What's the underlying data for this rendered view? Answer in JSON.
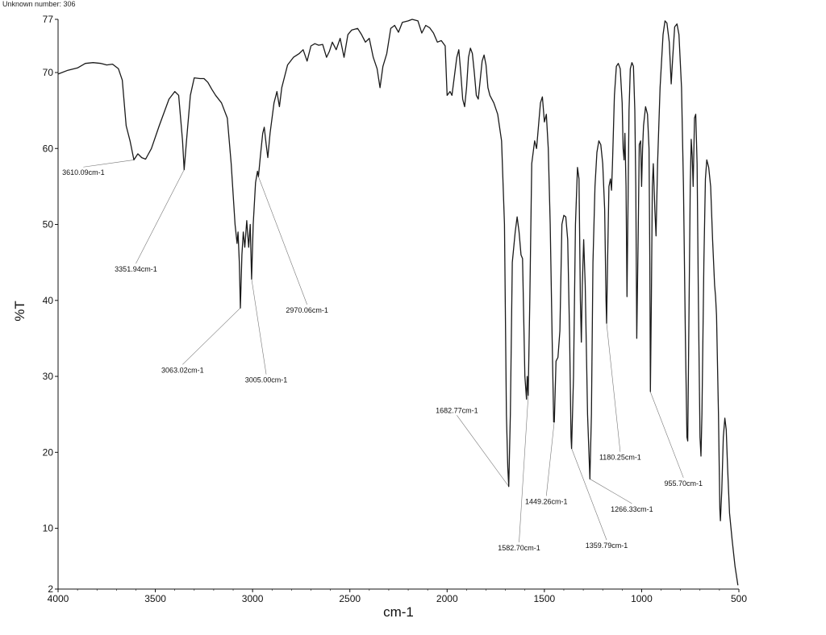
{
  "header": {
    "unknown_label": "Unknown number: 306"
  },
  "chart_data": {
    "type": "line",
    "title": "",
    "xlabel": "cm-1",
    "ylabel": "%T",
    "xlim": [
      4000,
      500
    ],
    "ylim": [
      2,
      77
    ],
    "x_reversed": true,
    "grid": false,
    "x_ticks": [
      4000,
      3500,
      3000,
      2500,
      2000,
      1500,
      1000,
      500
    ],
    "y_ticks": [
      2,
      10,
      20,
      30,
      40,
      50,
      60,
      70,
      77
    ],
    "series": [
      {
        "line_color": "#1a1a1a",
        "points": [
          [
            4000,
            69.8
          ],
          [
            3950,
            70.3
          ],
          [
            3900,
            70.6
          ],
          [
            3860,
            71.2
          ],
          [
            3820,
            71.3
          ],
          [
            3780,
            71.2
          ],
          [
            3750,
            71.0
          ],
          [
            3720,
            71.1
          ],
          [
            3690,
            70.5
          ],
          [
            3670,
            69.0
          ],
          [
            3650,
            63.0
          ],
          [
            3630,
            61.0
          ],
          [
            3610,
            58.5
          ],
          [
            3590,
            59.3
          ],
          [
            3570,
            58.8
          ],
          [
            3550,
            58.6
          ],
          [
            3520,
            60.0
          ],
          [
            3480,
            63.0
          ],
          [
            3430,
            66.5
          ],
          [
            3400,
            67.5
          ],
          [
            3380,
            67.0
          ],
          [
            3360,
            61.0
          ],
          [
            3352,
            57.2
          ],
          [
            3340,
            61.0
          ],
          [
            3320,
            67.0
          ],
          [
            3300,
            69.3
          ],
          [
            3270,
            69.2
          ],
          [
            3250,
            69.2
          ],
          [
            3230,
            68.7
          ],
          [
            3210,
            67.8
          ],
          [
            3190,
            67.0
          ],
          [
            3160,
            66.0
          ],
          [
            3130,
            64.0
          ],
          [
            3110,
            58.0
          ],
          [
            3090,
            50.0
          ],
          [
            3080,
            47.5
          ],
          [
            3075,
            49.0
          ],
          [
            3068,
            45.0
          ],
          [
            3063,
            39.0
          ],
          [
            3055,
            46.0
          ],
          [
            3048,
            49.0
          ],
          [
            3040,
            47.0
          ],
          [
            3030,
            50.5
          ],
          [
            3020,
            47.0
          ],
          [
            3012,
            50.0
          ],
          [
            3005,
            42.8
          ],
          [
            2997,
            50.0
          ],
          [
            2985,
            55.5
          ],
          [
            2975,
            57.0
          ],
          [
            2970,
            56.3
          ],
          [
            2960,
            59.0
          ],
          [
            2948,
            62.0
          ],
          [
            2940,
            62.8
          ],
          [
            2930,
            60.5
          ],
          [
            2922,
            58.8
          ],
          [
            2910,
            62.0
          ],
          [
            2890,
            66.0
          ],
          [
            2875,
            67.5
          ],
          [
            2862,
            65.5
          ],
          [
            2850,
            68.0
          ],
          [
            2820,
            71.0
          ],
          [
            2790,
            72.0
          ],
          [
            2760,
            72.5
          ],
          [
            2740,
            73.0
          ],
          [
            2720,
            71.5
          ],
          [
            2700,
            73.5
          ],
          [
            2680,
            73.8
          ],
          [
            2660,
            73.6
          ],
          [
            2640,
            73.7
          ],
          [
            2620,
            72.0
          ],
          [
            2605,
            72.8
          ],
          [
            2590,
            74.0
          ],
          [
            2570,
            73.0
          ],
          [
            2550,
            74.5
          ],
          [
            2530,
            72.0
          ],
          [
            2510,
            75.0
          ],
          [
            2490,
            75.6
          ],
          [
            2460,
            75.8
          ],
          [
            2440,
            75.0
          ],
          [
            2420,
            74.0
          ],
          [
            2400,
            74.5
          ],
          [
            2380,
            72.0
          ],
          [
            2360,
            70.5
          ],
          [
            2345,
            68.0
          ],
          [
            2330,
            70.8
          ],
          [
            2310,
            72.5
          ],
          [
            2290,
            75.8
          ],
          [
            2270,
            76.2
          ],
          [
            2250,
            75.3
          ],
          [
            2230,
            76.6
          ],
          [
            2200,
            76.8
          ],
          [
            2180,
            77.0
          ],
          [
            2150,
            76.8
          ],
          [
            2130,
            75.2
          ],
          [
            2110,
            76.2
          ],
          [
            2090,
            75.9
          ],
          [
            2070,
            75.2
          ],
          [
            2050,
            74.0
          ],
          [
            2030,
            74.2
          ],
          [
            2010,
            73.5
          ],
          [
            2000,
            67.0
          ],
          [
            1985,
            67.5
          ],
          [
            1975,
            67.0
          ],
          [
            1960,
            70.0
          ],
          [
            1950,
            72.0
          ],
          [
            1940,
            73.0
          ],
          [
            1930,
            70.0
          ],
          [
            1920,
            66.5
          ],
          [
            1910,
            65.5
          ],
          [
            1900,
            68.0
          ],
          [
            1890,
            72.0
          ],
          [
            1880,
            73.2
          ],
          [
            1870,
            72.5
          ],
          [
            1860,
            70.0
          ],
          [
            1850,
            67.0
          ],
          [
            1840,
            66.5
          ],
          [
            1830,
            69.0
          ],
          [
            1820,
            71.5
          ],
          [
            1810,
            72.3
          ],
          [
            1800,
            71.0
          ],
          [
            1790,
            68.0
          ],
          [
            1780,
            67.0
          ],
          [
            1760,
            66.0
          ],
          [
            1740,
            64.5
          ],
          [
            1720,
            61.0
          ],
          [
            1705,
            50.0
          ],
          [
            1695,
            25.0
          ],
          [
            1688,
            18.0
          ],
          [
            1683,
            15.5
          ],
          [
            1675,
            25.0
          ],
          [
            1665,
            45.0
          ],
          [
            1650,
            49.0
          ],
          [
            1640,
            51.0
          ],
          [
            1630,
            49.0
          ],
          [
            1620,
            46.0
          ],
          [
            1612,
            45.5
          ],
          [
            1600,
            30.0
          ],
          [
            1592,
            27.0
          ],
          [
            1588,
            30.0
          ],
          [
            1583,
            27.5
          ],
          [
            1575,
            40.0
          ],
          [
            1565,
            58.0
          ],
          [
            1550,
            61.0
          ],
          [
            1540,
            60.0
          ],
          [
            1530,
            63.0
          ],
          [
            1520,
            66.0
          ],
          [
            1510,
            66.8
          ],
          [
            1500,
            63.5
          ],
          [
            1490,
            64.5
          ],
          [
            1480,
            60.0
          ],
          [
            1470,
            50.0
          ],
          [
            1460,
            35.0
          ],
          [
            1452,
            24.0
          ],
          [
            1449,
            24.0
          ],
          [
            1440,
            32.0
          ],
          [
            1430,
            32.5
          ],
          [
            1420,
            36.0
          ],
          [
            1410,
            50.0
          ],
          [
            1400,
            51.2
          ],
          [
            1390,
            51.0
          ],
          [
            1380,
            48.0
          ],
          [
            1370,
            35.0
          ],
          [
            1363,
            22.0
          ],
          [
            1360,
            20.5
          ],
          [
            1350,
            30.0
          ],
          [
            1340,
            50.0
          ],
          [
            1330,
            57.5
          ],
          [
            1322,
            56.0
          ],
          [
            1315,
            40.0
          ],
          [
            1310,
            34.5
          ],
          [
            1305,
            42.0
          ],
          [
            1298,
            48.0
          ],
          [
            1290,
            42.0
          ],
          [
            1278,
            25.0
          ],
          [
            1266,
            16.5
          ],
          [
            1258,
            25.0
          ],
          [
            1250,
            45.0
          ],
          [
            1240,
            55.0
          ],
          [
            1230,
            59.5
          ],
          [
            1220,
            61.0
          ],
          [
            1210,
            60.5
          ],
          [
            1200,
            58.0
          ],
          [
            1190,
            52.0
          ],
          [
            1183,
            40.0
          ],
          [
            1180,
            37.0
          ],
          [
            1175,
            45.0
          ],
          [
            1168,
            55.0
          ],
          [
            1160,
            56.0
          ],
          [
            1155,
            54.5
          ],
          [
            1150,
            58.0
          ],
          [
            1140,
            67.0
          ],
          [
            1130,
            70.8
          ],
          [
            1120,
            71.2
          ],
          [
            1110,
            70.5
          ],
          [
            1100,
            66.0
          ],
          [
            1095,
            60.0
          ],
          [
            1090,
            58.5
          ],
          [
            1086,
            62.0
          ],
          [
            1080,
            55.0
          ],
          [
            1075,
            40.5
          ],
          [
            1070,
            52.0
          ],
          [
            1065,
            65.0
          ],
          [
            1058,
            70.5
          ],
          [
            1050,
            71.3
          ],
          [
            1042,
            70.8
          ],
          [
            1035,
            65.0
          ],
          [
            1030,
            55.0
          ],
          [
            1025,
            35.0
          ],
          [
            1018,
            48.0
          ],
          [
            1012,
            60.5
          ],
          [
            1005,
            61.0
          ],
          [
            1000,
            55.0
          ],
          [
            995,
            60.0
          ],
          [
            990,
            63.0
          ],
          [
            980,
            65.5
          ],
          [
            970,
            64.5
          ],
          [
            962,
            60.0
          ],
          [
            958,
            45.0
          ],
          [
            955,
            28.0
          ],
          [
            950,
            40.0
          ],
          [
            945,
            55.0
          ],
          [
            940,
            58.0
          ],
          [
            932,
            52.0
          ],
          [
            926,
            48.5
          ],
          [
            918,
            58.0
          ],
          [
            905,
            68.0
          ],
          [
            890,
            75.0
          ],
          [
            880,
            76.8
          ],
          [
            870,
            76.5
          ],
          [
            858,
            74.0
          ],
          [
            848,
            68.5
          ],
          [
            840,
            72.0
          ],
          [
            830,
            76.0
          ],
          [
            818,
            76.4
          ],
          [
            808,
            75.0
          ],
          [
            795,
            68.0
          ],
          [
            785,
            55.0
          ],
          [
            775,
            35.0
          ],
          [
            767,
            22.0
          ],
          [
            763,
            21.5
          ],
          [
            756,
            40.0
          ],
          [
            750,
            55.0
          ],
          [
            745,
            61.2
          ],
          [
            740,
            59.0
          ],
          [
            735,
            55.0
          ],
          [
            728,
            64.0
          ],
          [
            722,
            64.5
          ],
          [
            715,
            58.0
          ],
          [
            708,
            40.0
          ],
          [
            700,
            22.0
          ],
          [
            695,
            19.5
          ],
          [
            690,
            25.0
          ],
          [
            680,
            45.0
          ],
          [
            672,
            56.0
          ],
          [
            665,
            58.5
          ],
          [
            655,
            57.5
          ],
          [
            645,
            55.0
          ],
          [
            635,
            48.0
          ],
          [
            625,
            42.0
          ],
          [
            620,
            40.5
          ],
          [
            615,
            38.0
          ],
          [
            605,
            25.0
          ],
          [
            598,
            12.5
          ],
          [
            595,
            11.0
          ],
          [
            588,
            15.0
          ],
          [
            580,
            22.0
          ],
          [
            572,
            24.5
          ],
          [
            565,
            23.0
          ],
          [
            558,
            18.0
          ],
          [
            548,
            12.0
          ],
          [
            535,
            8.5
          ],
          [
            520,
            5.0
          ],
          [
            505,
            2.5
          ]
        ]
      }
    ],
    "annotations": [
      {
        "text": "3610.09cm-1",
        "x": 3610.09,
        "y": 58.5,
        "label_x": 3870,
        "label_y": 56.5
      },
      {
        "text": "3351.94cm-1",
        "x": 3351.94,
        "y": 57.2,
        "label_x": 3600,
        "label_y": 43.8
      },
      {
        "text": "2970.06cm-1",
        "x": 2970.06,
        "y": 56.3,
        "label_x": 2720,
        "label_y": 38.4
      },
      {
        "text": "3063.02cm-1",
        "x": 3063.02,
        "y": 39.0,
        "label_x": 3360,
        "label_y": 30.5
      },
      {
        "text": "3005.00cm-1",
        "x": 3005.0,
        "y": 42.8,
        "label_x": 2930,
        "label_y": 29.2
      },
      {
        "text": "1682.77cm-1",
        "x": 1682.77,
        "y": 15.5,
        "label_x": 1950,
        "label_y": 25.2
      },
      {
        "text": "1582.70cm-1",
        "x": 1582.7,
        "y": 27.5,
        "label_x": 1630,
        "label_y": 7.1
      },
      {
        "text": "1449.26cm-1",
        "x": 1449.26,
        "y": 24.0,
        "label_x": 1490,
        "label_y": 13.2
      },
      {
        "text": "1359.79cm-1",
        "x": 1359.79,
        "y": 20.5,
        "label_x": 1180,
        "label_y": 7.4
      },
      {
        "text": "1266.33cm-1",
        "x": 1266.33,
        "y": 16.5,
        "label_x": 1050,
        "label_y": 12.2
      },
      {
        "text": "1180.25cm-1",
        "x": 1180.25,
        "y": 37.0,
        "label_x": 1110,
        "label_y": 19.0
      },
      {
        "text": "955.70cm-1",
        "x": 955.7,
        "y": 28.0,
        "label_x": 785,
        "label_y": 15.6
      }
    ]
  }
}
